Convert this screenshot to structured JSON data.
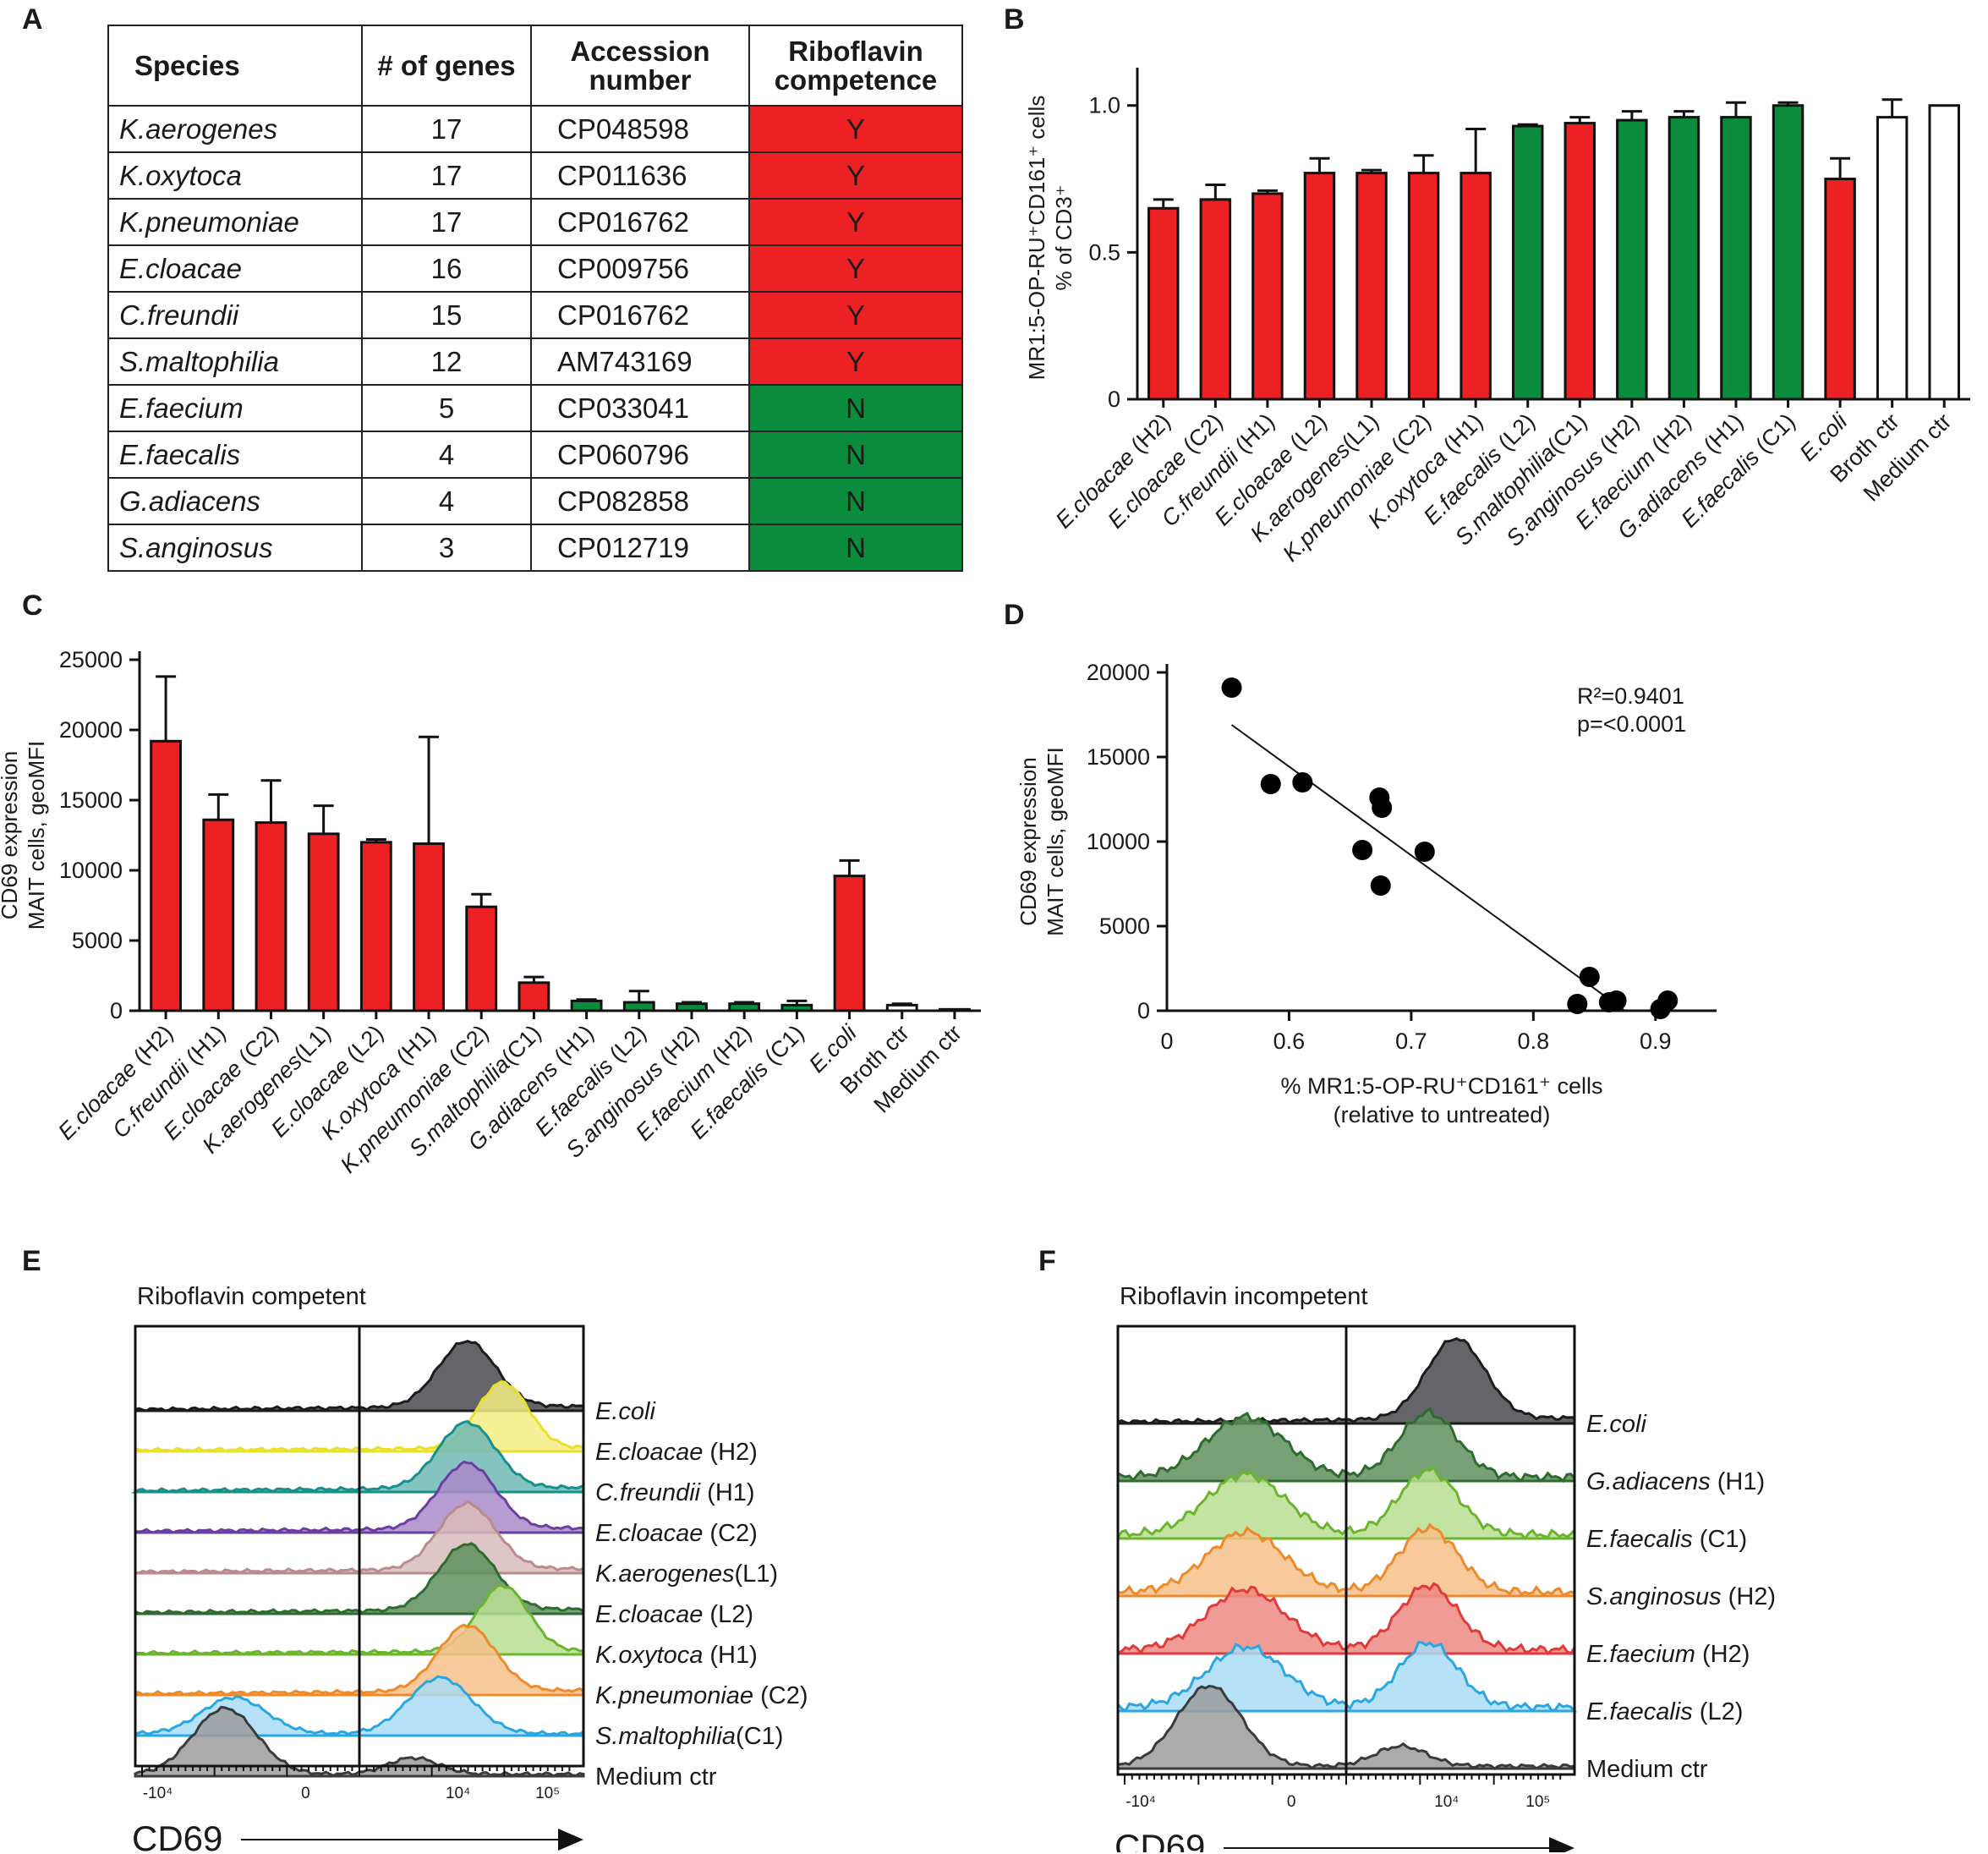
{
  "colors": {
    "competent": "#ed2024",
    "incompetent": "#0a8c3c",
    "control": "#ffffff"
  },
  "panel_letters": {
    "a": "A",
    "b": "B",
    "c": "C",
    "d": "D",
    "e": "E",
    "f": "F"
  },
  "table": {
    "headers": [
      "Species",
      "# of genes",
      "Accession number",
      "Riboflavin competence"
    ],
    "rows": [
      {
        "species": "K.aerogenes",
        "genes": "17",
        "accession": "CP048598",
        "competence": "Y"
      },
      {
        "species": "K.oxytoca",
        "genes": "17",
        "accession": "CP011636",
        "competence": "Y"
      },
      {
        "species": "K.pneumoniae",
        "genes": "17",
        "accession": "CP016762",
        "competence": "Y"
      },
      {
        "species": "E.cloacae",
        "genes": "16",
        "accession": "CP009756",
        "competence": "Y"
      },
      {
        "species": "C.freundii",
        "genes": "15",
        "accession": "CP016762",
        "competence": "Y"
      },
      {
        "species": "S.maltophilia",
        "genes": "12",
        "accession": "AM743169",
        "competence": "Y"
      },
      {
        "species": "E.faecium",
        "genes": "5",
        "accession": "CP033041",
        "competence": "N"
      },
      {
        "species": "E.faecalis",
        "genes": "4",
        "accession": "CP060796",
        "competence": "N"
      },
      {
        "species": "G.adiacens",
        "genes": "4",
        "accession": "CP082858",
        "competence": "N"
      },
      {
        "species": "S.anginosus",
        "genes": "3",
        "accession": "CP012719",
        "competence": "N"
      }
    ]
  },
  "chart_data": [
    {
      "id": "B",
      "type": "bar",
      "ylabel_line1": "MR1:5-OP-RU⁺CD161⁺ cells",
      "ylabel_line2": "% of CD3⁺",
      "ylim": [
        0,
        1.1
      ],
      "yticks": [
        0,
        0.5,
        1.0
      ],
      "ytick_labels": [
        "0",
        "0.5",
        "1.0"
      ],
      "categories": [
        {
          "species": "E.cloacae",
          "strain": " (H2)",
          "value": 0.65,
          "err": 0.03,
          "group": "competent"
        },
        {
          "species": "E.cloacae",
          "strain": " (C2)",
          "value": 0.68,
          "err": 0.05,
          "group": "competent"
        },
        {
          "species": "C.freundii",
          "strain": " (H1)",
          "value": 0.7,
          "err": 0.01,
          "group": "competent"
        },
        {
          "species": "E.cloacae",
          "strain": " (L2)",
          "value": 0.77,
          "err": 0.05,
          "group": "competent"
        },
        {
          "species": "K.aerogenes",
          "strain": "(L1)",
          "value": 0.77,
          "err": 0.01,
          "group": "competent"
        },
        {
          "species": "K.pneumoniae",
          "strain": " (C2)",
          "value": 0.77,
          "err": 0.06,
          "group": "competent"
        },
        {
          "species": "K.oxytoca",
          "strain": " (H1)",
          "value": 0.77,
          "err": 0.15,
          "group": "competent"
        },
        {
          "species": "E.faecalis",
          "strain": " (L2)",
          "value": 0.93,
          "err": 0.005,
          "group": "incompetent"
        },
        {
          "species": "S.maltophilia",
          "strain": "(C1)",
          "value": 0.94,
          "err": 0.02,
          "group": "competent"
        },
        {
          "species": "S.anginosus",
          "strain": " (H2)",
          "value": 0.95,
          "err": 0.03,
          "group": "incompetent"
        },
        {
          "species": "E.faecium",
          "strain": " (H2)",
          "value": 0.96,
          "err": 0.02,
          "group": "incompetent"
        },
        {
          "species": "G.adiacens",
          "strain": " (H1)",
          "value": 0.96,
          "err": 0.05,
          "group": "incompetent"
        },
        {
          "species": "E.faecalis",
          "strain": " (C1)",
          "value": 1.0,
          "err": 0.01,
          "group": "incompetent"
        },
        {
          "species": "E.coli",
          "strain": "",
          "value": 0.75,
          "err": 0.07,
          "group": "competent"
        },
        {
          "species": "Broth ctr",
          "strain": "",
          "value": 0.96,
          "err": 0.06,
          "group": "control",
          "plain": true
        },
        {
          "species": "Medium ctr",
          "strain": "",
          "value": 1.0,
          "err": 0,
          "group": "control",
          "plain": true
        }
      ]
    },
    {
      "id": "C",
      "type": "bar",
      "ylabel_line1": "CD69 expression",
      "ylabel_line2": "MAIT cells, geoMFI",
      "ylim": [
        0,
        25000
      ],
      "yticks": [
        0,
        5000,
        10000,
        15000,
        20000,
        25000
      ],
      "ytick_labels": [
        "0",
        "5000",
        "10000",
        "15000",
        "20000",
        "25000"
      ],
      "categories": [
        {
          "species": "E.cloacae",
          "strain": " (H2)",
          "value": 19200,
          "err": 4600,
          "group": "competent"
        },
        {
          "species": "C.freundii",
          "strain": " (H1)",
          "value": 13600,
          "err": 1800,
          "group": "competent"
        },
        {
          "species": "E.cloacae",
          "strain": " (C2)",
          "value": 13400,
          "err": 3000,
          "group": "competent"
        },
        {
          "species": "K.aerogenes",
          "strain": "(L1)",
          "value": 12600,
          "err": 2000,
          "group": "competent"
        },
        {
          "species": "E.cloacae",
          "strain": " (L2)",
          "value": 12000,
          "err": 200,
          "group": "competent"
        },
        {
          "species": "K.oxytoca",
          "strain": " (H1)",
          "value": 11900,
          "err": 7600,
          "group": "competent"
        },
        {
          "species": "K.pneumoniae",
          "strain": " (C2)",
          "value": 7400,
          "err": 900,
          "group": "competent"
        },
        {
          "species": "S.maltophilia",
          "strain": "(C1)",
          "value": 2000,
          "err": 400,
          "group": "competent"
        },
        {
          "species": "G.adiacens",
          "strain": " (H1)",
          "value": 700,
          "err": 100,
          "group": "incompetent"
        },
        {
          "species": "E.faecalis",
          "strain": " (L2)",
          "value": 600,
          "err": 800,
          "group": "incompetent"
        },
        {
          "species": "S.anginosus",
          "strain": " (H2)",
          "value": 500,
          "err": 100,
          "group": "incompetent"
        },
        {
          "species": "E.faecium",
          "strain": " (H2)",
          "value": 500,
          "err": 100,
          "group": "incompetent"
        },
        {
          "species": "E.faecalis",
          "strain": " (C1)",
          "value": 400,
          "err": 300,
          "group": "incompetent"
        },
        {
          "species": "E.coli",
          "strain": "",
          "value": 9600,
          "err": 1100,
          "group": "competent"
        },
        {
          "species": "Broth ctr",
          "strain": "",
          "value": 400,
          "err": 100,
          "group": "control",
          "plain": true
        },
        {
          "species": "Medium ctr",
          "strain": "",
          "value": 100,
          "err": 0,
          "group": "control",
          "plain": true
        }
      ]
    },
    {
      "id": "D",
      "type": "scatter",
      "xlabel_line1": "% MR1:5-OP-RU⁺CD161⁺ cells",
      "xlabel_line2": "(relative to untreated)",
      "ylabel_line1": "CD69 expression",
      "ylabel_line2": "MAIT cells, geoMFI",
      "xlim": [
        0.5,
        0.95
      ],
      "ylim": [
        0,
        20000
      ],
      "xticks": [
        0.6,
        0.7,
        0.8,
        0.9
      ],
      "xtick_labels": [
        "0.6",
        "0.7",
        "0.8",
        "0.9"
      ],
      "x_origin_label": "0",
      "yticks": [
        0,
        5000,
        10000,
        15000,
        20000
      ],
      "ytick_labels": [
        "0",
        "5000",
        "10000",
        "15000",
        "20000"
      ],
      "points": [
        {
          "x": 0.553,
          "y": 19100
        },
        {
          "x": 0.585,
          "y": 13400
        },
        {
          "x": 0.611,
          "y": 13500
        },
        {
          "x": 0.674,
          "y": 12600
        },
        {
          "x": 0.676,
          "y": 12000
        },
        {
          "x": 0.66,
          "y": 9500
        },
        {
          "x": 0.711,
          "y": 9400
        },
        {
          "x": 0.675,
          "y": 7400
        },
        {
          "x": 0.846,
          "y": 2000
        },
        {
          "x": 0.836,
          "y": 400
        },
        {
          "x": 0.862,
          "y": 500
        },
        {
          "x": 0.868,
          "y": 600
        },
        {
          "x": 0.904,
          "y": 100
        },
        {
          "x": 0.91,
          "y": 600
        }
      ],
      "fit_line": {
        "x1": 0.553,
        "y1": 16900,
        "x2": 0.875,
        "y2": 0
      },
      "stats_r2": "R²=0.9401",
      "stats_p": "p=<0.0001"
    }
  ],
  "histograms": {
    "axis_label": "CD69",
    "tick_labels": [
      "-10⁴",
      "0",
      "10⁴",
      "10⁵"
    ],
    "E": {
      "title": "Riboflavin competent",
      "tracks": [
        {
          "species": "E.coli",
          "strain": "",
          "color": "#1c1c1c",
          "fill": "#4a4a4f",
          "profile": "high"
        },
        {
          "species": "E.cloacae",
          "strain": " (H2)",
          "color": "#e9e02a",
          "fill": "#f3ec84",
          "profile": "high2"
        },
        {
          "species": "C.freundii",
          "strain": " (H1)",
          "color": "#178f8a",
          "fill": "#6fb8b4",
          "profile": "high"
        },
        {
          "species": "E.cloacae",
          "strain": " (C2)",
          "color": "#6b3fa0",
          "fill": "#a98bc9",
          "profile": "high"
        },
        {
          "species": "K.aerogenes",
          "strain": "(L1)",
          "color": "#b88c8c",
          "fill": "#d9bcbc",
          "profile": "high"
        },
        {
          "species": "E.cloacae",
          "strain": " (L2)",
          "color": "#2e6b2e",
          "fill": "#5f8f5f",
          "profile": "high"
        },
        {
          "species": "K.oxytoca",
          "strain": " (H1)",
          "color": "#6bb52e",
          "fill": "#b9de93",
          "profile": "high2"
        },
        {
          "species": "K.pneumoniae",
          "strain": " (C2)",
          "color": "#ef8a2a",
          "fill": "#f6c08a",
          "profile": "high"
        },
        {
          "species": "S.maltophilia",
          "strain": "(C1)",
          "color": "#2aa7e0",
          "fill": "#a9dcf4",
          "profile": "broad"
        },
        {
          "species": "Medium ctr",
          "strain": "",
          "color": "#3b3b3b",
          "fill": "#9c9c9c",
          "profile": "low",
          "plain": true
        }
      ]
    },
    "F": {
      "title": "Riboflavin incompetent",
      "tracks": [
        {
          "species": "E.coli",
          "strain": "",
          "color": "#1c1c1c",
          "fill": "#4a4a4f",
          "profile": "high"
        },
        {
          "species": "G.adiacens",
          "strain": " (H1)",
          "color": "#2e6b2e",
          "fill": "#5f8f5f",
          "profile": "bimodal"
        },
        {
          "species": "E.faecalis",
          "strain": " (C1)",
          "color": "#6bb52e",
          "fill": "#b9de93",
          "profile": "bimodal"
        },
        {
          "species": "S.anginosus",
          "strain": " (H2)",
          "color": "#ef8a2a",
          "fill": "#f6c08a",
          "profile": "bimodal"
        },
        {
          "species": "E.faecium",
          "strain": " (H2)",
          "color": "#e03a3a",
          "fill": "#ef8a84",
          "profile": "bimodal"
        },
        {
          "species": "E.faecalis",
          "strain": " (L2)",
          "color": "#2aa7e0",
          "fill": "#a9dcf4",
          "profile": "bimodal"
        },
        {
          "species": "Medium ctr",
          "strain": "",
          "color": "#3b3b3b",
          "fill": "#9c9c9c",
          "profile": "low",
          "plain": true
        }
      ]
    }
  }
}
